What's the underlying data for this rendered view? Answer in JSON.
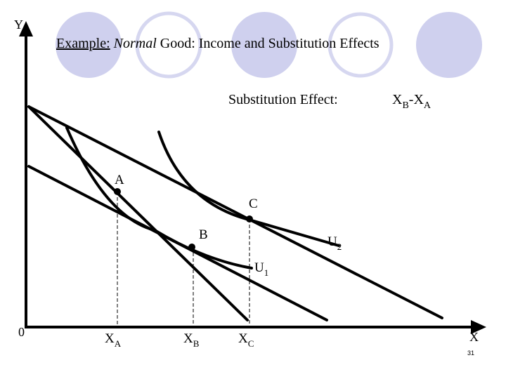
{
  "slide": {
    "title_prefix": "Example:",
    "title_italic": "Normal",
    "title_rest": " Good: Income and Substitution Effects",
    "page_number": "31",
    "decor_circle_color": "#cfd0ee",
    "decor_ring_color": "#d6d7f0"
  },
  "diagram": {
    "y_axis_label": "Y",
    "x_axis_label": "X",
    "origin_label": "0",
    "effect_label": "Substitution Effect:",
    "effect_formula": {
      "x1": "X",
      "sub1": "B",
      "dash": "-",
      "x2": "X",
      "sub2": "A"
    },
    "points": {
      "a": "A",
      "b": "B",
      "c": "C"
    },
    "curves": {
      "u1": {
        "base": "U",
        "sub": "1"
      },
      "u2": {
        "base": "U",
        "sub": "2"
      }
    },
    "x_ticks": [
      {
        "base": "X",
        "sub": "A"
      },
      {
        "base": "X",
        "sub": "B"
      },
      {
        "base": "X",
        "sub": "C"
      }
    ]
  }
}
